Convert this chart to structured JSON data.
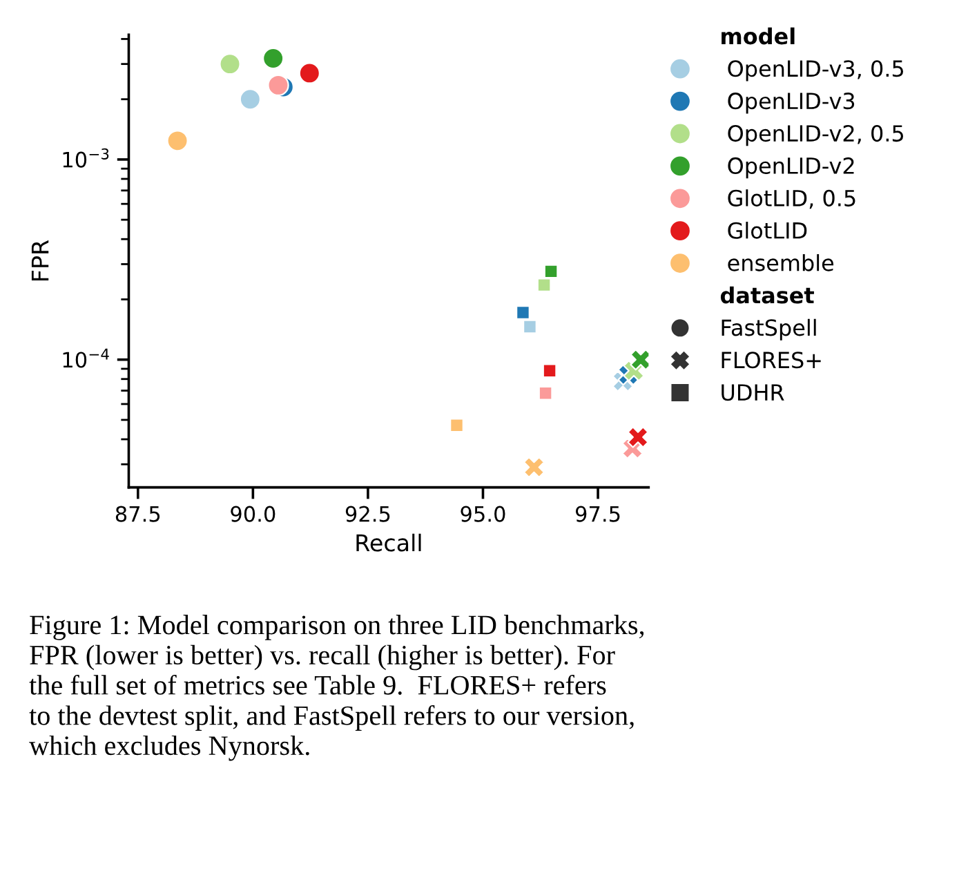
{
  "chart_data": {
    "type": "scatter",
    "xlabel": "Recall",
    "ylabel": "FPR",
    "log": "y",
    "legend": "right",
    "legend_title": "model",
    "xlim": [
      87.3,
      98.6
    ],
    "xticks": [
      {
        "value": 87.5,
        "label": "87.5"
      },
      {
        "value": 90,
        "label": "90.0"
      },
      {
        "value": 92.5,
        "label": "92.5"
      },
      {
        "value": 95,
        "label": "95.0"
      },
      {
        "value": 97.5,
        "label": "97.5"
      }
    ],
    "ylim": [
      2.3e-05,
      0.0042
    ],
    "yticks": [
      {
        "value": 0.0001,
        "label": "10$^{−4}$"
      },
      {
        "value": 0.001,
        "label": "10$^{−3}$"
      }
    ],
    "series": [
      {
        "name": "OpenLID-v3, 0.5",
        "color": "#a6cee3",
        "x": [
          89.94,
          98.04,
          96.02
        ],
        "values": [
          0.002,
          7.8e-05,
          0.000146
        ]
      },
      {
        "name": "OpenLID-v3",
        "color": "#1f78b4",
        "x": [
          90.66,
          98.16,
          95.87
        ],
        "values": [
          0.0023,
          8.4e-05,
          0.000172
        ]
      },
      {
        "name": "OpenLID-v2, 0.5",
        "color": "#b2df8a",
        "x": [
          89.5,
          98.28,
          96.33
        ],
        "values": [
          0.003,
          8.8e-05,
          0.000236
        ]
      },
      {
        "name": "OpenLID-v2",
        "color": "#33a02c",
        "x": [
          90.44,
          98.43,
          96.48
        ],
        "values": [
          0.0032,
          0.0001,
          0.000276
        ]
      },
      {
        "name": "GlotLID, 0.5",
        "color": "#fb9a99",
        "x": [
          90.55,
          98.25,
          96.36
        ],
        "values": [
          0.00235,
          3.6e-05,
          6.8e-05
        ]
      },
      {
        "name": "GlotLID",
        "color": "#e31a1c",
        "x": [
          91.23,
          98.37,
          96.45
        ],
        "values": [
          0.0027,
          4.1e-05,
          8.8e-05
        ]
      },
      {
        "name": "ensemble",
        "color": "#fdbf6f",
        "x": [
          88.36,
          96.11,
          94.43
        ],
        "values": [
          0.00124,
          2.9e-05,
          4.7e-05
        ]
      },
      {
        "name": "FastSpell",
        "marker": "circle",
        "color": "#333333"
      },
      {
        "name": "FLORES+",
        "marker": "cross",
        "color": "#333333"
      },
      {
        "name": "UDHR",
        "marker": "square",
        "color": "#333333"
      }
    ],
    "annotations": [
      "dataset",
      "Figure 1: Model comparison on three LID benchmarks,\nFPR (lower is better) vs. recall (higher is better). For\nthe full set of metrics see Table 9.  FLORES+ refers\nto the devtest split, and FastSpell refers to our version,\nwhich excludes Nynorsk."
    ]
  }
}
